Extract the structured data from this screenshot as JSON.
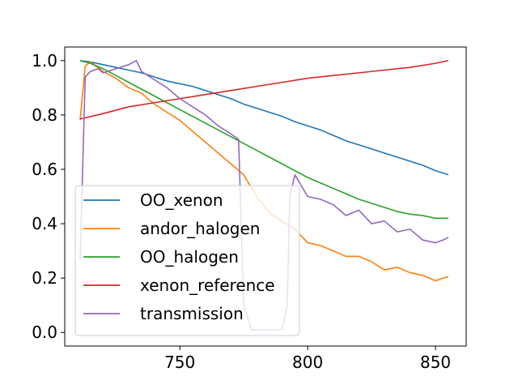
{
  "chart_data": {
    "type": "line",
    "title": "",
    "xlabel": "",
    "ylabel": "",
    "xlim": [
      705,
      862
    ],
    "ylim": [
      -0.05,
      1.05
    ],
    "xticks": [
      750,
      800,
      850
    ],
    "yticks": [
      0.0,
      0.2,
      0.4,
      0.6,
      0.8,
      1.0
    ],
    "xtick_labels": [
      "750",
      "800",
      "850"
    ],
    "ytick_labels": [
      "0.0",
      "0.2",
      "0.4",
      "0.6",
      "0.8",
      "1.0"
    ],
    "grid": false,
    "legend_position": "lower-left",
    "series": [
      {
        "name": "OO_xenon",
        "color": "#1f77b4",
        "x": [
          711,
          715,
          720,
          725,
          730,
          735,
          740,
          745,
          750,
          755,
          760,
          765,
          770,
          775,
          780,
          785,
          790,
          795,
          800,
          805,
          810,
          815,
          820,
          825,
          830,
          835,
          840,
          845,
          850,
          855
        ],
        "y": [
          1.0,
          0.995,
          0.985,
          0.975,
          0.965,
          0.955,
          0.94,
          0.925,
          0.915,
          0.905,
          0.89,
          0.875,
          0.86,
          0.84,
          0.825,
          0.81,
          0.795,
          0.775,
          0.76,
          0.745,
          0.725,
          0.705,
          0.69,
          0.675,
          0.66,
          0.645,
          0.63,
          0.615,
          0.595,
          0.58
        ]
      },
      {
        "name": "andor_halogen",
        "color": "#ff7f0e",
        "x": [
          711,
          713,
          715,
          720,
          725,
          730,
          735,
          740,
          745,
          750,
          755,
          760,
          765,
          770,
          775,
          780,
          785,
          790,
          795,
          800,
          805,
          810,
          815,
          820,
          825,
          830,
          835,
          840,
          845,
          850,
          853,
          855
        ],
        "y": [
          0.78,
          0.98,
          0.995,
          0.96,
          0.935,
          0.9,
          0.88,
          0.84,
          0.81,
          0.78,
          0.74,
          0.7,
          0.66,
          0.62,
          0.58,
          0.5,
          0.44,
          0.41,
          0.38,
          0.33,
          0.32,
          0.3,
          0.28,
          0.28,
          0.26,
          0.23,
          0.24,
          0.22,
          0.21,
          0.19,
          0.2,
          0.205
        ]
      },
      {
        "name": "OO_halogen",
        "color": "#2ca02c",
        "x": [
          711,
          715,
          720,
          725,
          730,
          735,
          740,
          745,
          750,
          755,
          760,
          765,
          770,
          775,
          780,
          785,
          790,
          795,
          800,
          805,
          810,
          815,
          820,
          825,
          830,
          835,
          840,
          845,
          850,
          855
        ],
        "y": [
          1.0,
          0.99,
          0.97,
          0.945,
          0.92,
          0.895,
          0.87,
          0.845,
          0.82,
          0.795,
          0.77,
          0.745,
          0.72,
          0.695,
          0.67,
          0.645,
          0.62,
          0.595,
          0.57,
          0.55,
          0.53,
          0.51,
          0.49,
          0.475,
          0.46,
          0.445,
          0.435,
          0.43,
          0.42,
          0.42
        ]
      },
      {
        "name": "xenon_reference",
        "color": "#d62728",
        "x": [
          711,
          720,
          730,
          740,
          750,
          760,
          770,
          780,
          790,
          800,
          810,
          820,
          830,
          840,
          850,
          855
        ],
        "y": [
          0.785,
          0.805,
          0.83,
          0.845,
          0.86,
          0.875,
          0.89,
          0.905,
          0.92,
          0.935,
          0.945,
          0.955,
          0.965,
          0.975,
          0.99,
          1.0
        ]
      },
      {
        "name": "transmission",
        "color": "#9467bd",
        "x": [
          711,
          712,
          713,
          715,
          718,
          720,
          725,
          730,
          733,
          735,
          740,
          745,
          750,
          755,
          760,
          765,
          770,
          773,
          774,
          775,
          778,
          785,
          790,
          792,
          793,
          795,
          800,
          805,
          810,
          815,
          820,
          825,
          830,
          835,
          840,
          845,
          850,
          853,
          855
        ],
        "y": [
          0.27,
          0.6,
          0.94,
          0.96,
          0.97,
          0.955,
          0.97,
          0.985,
          1.0,
          0.96,
          0.93,
          0.9,
          0.86,
          0.83,
          0.8,
          0.76,
          0.73,
          0.71,
          0.4,
          0.1,
          0.01,
          0.01,
          0.01,
          0.1,
          0.5,
          0.58,
          0.5,
          0.49,
          0.47,
          0.43,
          0.45,
          0.4,
          0.41,
          0.37,
          0.38,
          0.34,
          0.33,
          0.34,
          0.35
        ]
      }
    ]
  }
}
